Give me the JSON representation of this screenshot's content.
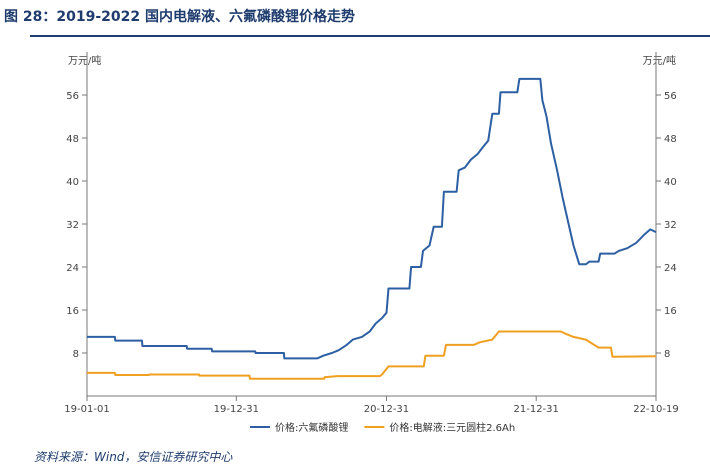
{
  "figure": {
    "title": "图 28：2019-2022 国内电解液、六氟磷酸锂价格走势",
    "source": "资料来源：Wind，安信证券研究中心"
  },
  "chart_data": {
    "type": "line",
    "y_unit_left": "万元/吨",
    "y_unit_right": "万元/吨",
    "ylim": [
      0,
      64
    ],
    "yticks": [
      8,
      16,
      24,
      32,
      40,
      48,
      56
    ],
    "xlim": [
      "2019-01-01",
      "2022-10-19"
    ],
    "xticks": [
      "19-01-01",
      "19-12-31",
      "20-12-31",
      "21-12-31",
      "22-10-19"
    ],
    "grid": false,
    "legend_position": "bottom",
    "series": [
      {
        "name": "价格:六氟磷酸锂",
        "color": "#2d5fa3",
        "points": [
          [
            "2019-01-01",
            11.0
          ],
          [
            "2019-03-10",
            11.0
          ],
          [
            "2019-03-11",
            10.3
          ],
          [
            "2019-05-15",
            10.3
          ],
          [
            "2019-05-16",
            9.3
          ],
          [
            "2019-09-01",
            9.3
          ],
          [
            "2019-09-02",
            8.8
          ],
          [
            "2019-11-01",
            8.8
          ],
          [
            "2019-11-02",
            8.3
          ],
          [
            "2020-02-15",
            8.3
          ],
          [
            "2020-02-16",
            8.0
          ],
          [
            "2020-04-25",
            8.0
          ],
          [
            "2020-04-26",
            7.0
          ],
          [
            "2020-07-15",
            7.0
          ],
          [
            "2020-07-30",
            7.5
          ],
          [
            "2020-08-20",
            8.0
          ],
          [
            "2020-09-05",
            8.5
          ],
          [
            "2020-09-25",
            9.5
          ],
          [
            "2020-10-10",
            10.5
          ],
          [
            "2020-11-01",
            11.0
          ],
          [
            "2020-11-20",
            12.0
          ],
          [
            "2020-12-05",
            13.5
          ],
          [
            "2020-12-20",
            14.5
          ],
          [
            "2020-12-31",
            15.5
          ],
          [
            "2021-01-05",
            20.0
          ],
          [
            "2021-02-25",
            20.0
          ],
          [
            "2021-03-01",
            24.0
          ],
          [
            "2021-03-25",
            24.0
          ],
          [
            "2021-03-30",
            27.0
          ],
          [
            "2021-04-15",
            28.0
          ],
          [
            "2021-04-25",
            31.5
          ],
          [
            "2021-05-15",
            31.5
          ],
          [
            "2021-05-20",
            38.0
          ],
          [
            "2021-06-20",
            38.0
          ],
          [
            "2021-06-25",
            42.0
          ],
          [
            "2021-07-10",
            42.5
          ],
          [
            "2021-07-25",
            44.0
          ],
          [
            "2021-08-10",
            45.0
          ],
          [
            "2021-08-25",
            46.5
          ],
          [
            "2021-09-05",
            47.5
          ],
          [
            "2021-09-15",
            52.5
          ],
          [
            "2021-10-01",
            52.5
          ],
          [
            "2021-10-05",
            56.5
          ],
          [
            "2021-11-15",
            56.5
          ],
          [
            "2021-11-20",
            59.0
          ],
          [
            "2022-01-10",
            59.0
          ],
          [
            "2022-01-15",
            55.0
          ],
          [
            "2022-01-25",
            52.0
          ],
          [
            "2022-02-05",
            47.0
          ],
          [
            "2022-02-20",
            42.0
          ],
          [
            "2022-03-05",
            37.0
          ],
          [
            "2022-03-20",
            32.0
          ],
          [
            "2022-04-01",
            28.0
          ],
          [
            "2022-04-15",
            24.5
          ],
          [
            "2022-05-01",
            24.5
          ],
          [
            "2022-05-10",
            25.0
          ],
          [
            "2022-06-01",
            25.0
          ],
          [
            "2022-06-05",
            26.5
          ],
          [
            "2022-07-10",
            26.5
          ],
          [
            "2022-07-20",
            27.0
          ],
          [
            "2022-08-10",
            27.5
          ],
          [
            "2022-09-01",
            28.5
          ],
          [
            "2022-09-20",
            30.0
          ],
          [
            "2022-10-05",
            31.0
          ],
          [
            "2022-10-19",
            30.5
          ]
        ]
      },
      {
        "name": "价格:电解液:三元圆柱2.6Ah",
        "color": "#f0a020",
        "points": [
          [
            "2019-01-01",
            4.3
          ],
          [
            "2019-03-10",
            4.3
          ],
          [
            "2019-03-11",
            3.9
          ],
          [
            "2019-06-01",
            3.9
          ],
          [
            "2019-06-02",
            4.0
          ],
          [
            "2019-10-01",
            4.0
          ],
          [
            "2019-10-02",
            3.8
          ],
          [
            "2020-02-01",
            3.8
          ],
          [
            "2020-02-02",
            3.2
          ],
          [
            "2020-08-01",
            3.2
          ],
          [
            "2020-08-02",
            3.5
          ],
          [
            "2020-09-01",
            3.7
          ],
          [
            "2020-12-15",
            3.7
          ],
          [
            "2020-12-20",
            4.0
          ],
          [
            "2021-01-05",
            5.5
          ],
          [
            "2021-04-01",
            5.5
          ],
          [
            "2021-04-05",
            7.5
          ],
          [
            "2021-05-20",
            7.5
          ],
          [
            "2021-05-25",
            9.5
          ],
          [
            "2021-08-01",
            9.5
          ],
          [
            "2021-08-15",
            10.0
          ],
          [
            "2021-09-15",
            10.5
          ],
          [
            "2021-10-01",
            12.0
          ],
          [
            "2022-03-01",
            12.0
          ],
          [
            "2022-03-15",
            11.5
          ],
          [
            "2022-04-01",
            11.0
          ],
          [
            "2022-05-01",
            10.5
          ],
          [
            "2022-06-01",
            9.0
          ],
          [
            "2022-07-01",
            9.0
          ],
          [
            "2022-07-05",
            7.3
          ],
          [
            "2022-10-19",
            7.4
          ]
        ]
      }
    ]
  }
}
